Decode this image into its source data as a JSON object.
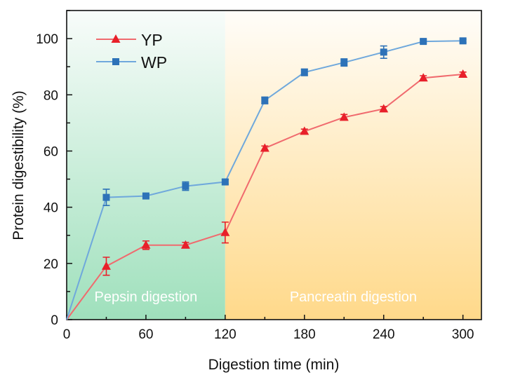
{
  "chart_data": {
    "type": "line",
    "xlabel": "Digestion time (min)",
    "ylabel": "Protein digestibility (%)",
    "xlim": [
      0,
      314
    ],
    "ylim": [
      0,
      110
    ],
    "xticks": [
      0,
      60,
      120,
      180,
      240,
      300
    ],
    "yticks": [
      0,
      20,
      40,
      60,
      80,
      100
    ],
    "grid": false,
    "legend": "top-left",
    "regions": [
      {
        "label": "Pepsin digestion",
        "from": 0,
        "to": 120,
        "color": "#9fe0bc"
      },
      {
        "label": "Pancreatin digestion",
        "from": 120,
        "to": 314,
        "color": "#ffd98a"
      }
    ],
    "x": [
      0,
      30,
      60,
      90,
      120,
      150,
      180,
      210,
      240,
      270,
      300
    ],
    "series": [
      {
        "name": "YP",
        "color": "#e8202a",
        "line_color": "#f06a6e",
        "marker": "triangle",
        "values": [
          0,
          19,
          26.5,
          26.5,
          31,
          61,
          67,
          72,
          75,
          86,
          87.3
        ],
        "errors": [
          0,
          3.2,
          1.5,
          1,
          3.7,
          0.8,
          0.8,
          1,
          0.8,
          0.8,
          0.8
        ]
      },
      {
        "name": "WP",
        "color": "#2d72b8",
        "line_color": "#6fa8dc",
        "marker": "square",
        "values": [
          0,
          43.5,
          44,
          47.5,
          49,
          78,
          88,
          91.5,
          95.2,
          99,
          99.2
        ],
        "errors": [
          0,
          2.9,
          0.6,
          1.5,
          0.8,
          1.2,
          1.2,
          1.3,
          2.2,
          0.6,
          0.6
        ]
      }
    ]
  }
}
